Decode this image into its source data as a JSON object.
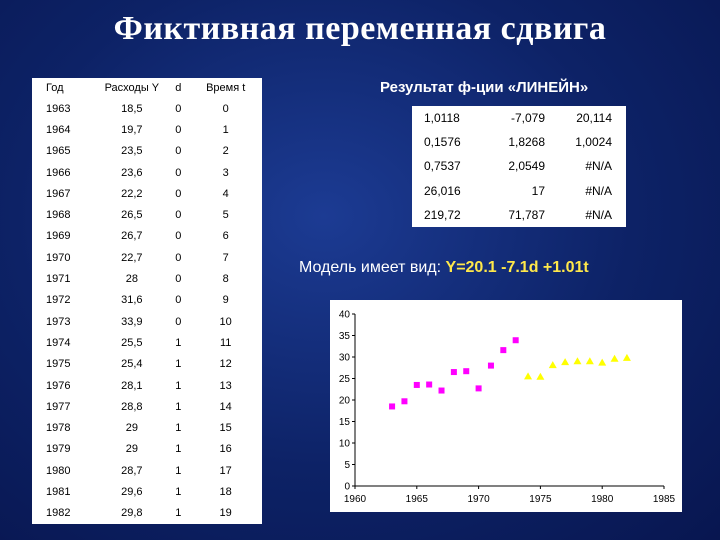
{
  "title": "Фиктивная переменная сдвига",
  "data_table": {
    "headers": [
      "Год",
      "Расходы Y",
      "d",
      "Время t"
    ],
    "rows": [
      [
        "1963",
        "18,5",
        "0",
        "0"
      ],
      [
        "1964",
        "19,7",
        "0",
        "1"
      ],
      [
        "1965",
        "23,5",
        "0",
        "2"
      ],
      [
        "1966",
        "23,6",
        "0",
        "3"
      ],
      [
        "1967",
        "22,2",
        "0",
        "4"
      ],
      [
        "1968",
        "26,5",
        "0",
        "5"
      ],
      [
        "1969",
        "26,7",
        "0",
        "6"
      ],
      [
        "1970",
        "22,7",
        "0",
        "7"
      ],
      [
        "1971",
        "28",
        "0",
        "8"
      ],
      [
        "1972",
        "31,6",
        "0",
        "9"
      ],
      [
        "1973",
        "33,9",
        "0",
        "10"
      ],
      [
        "1974",
        "25,5",
        "1",
        "11"
      ],
      [
        "1975",
        "25,4",
        "1",
        "12"
      ],
      [
        "1976",
        "28,1",
        "1",
        "13"
      ],
      [
        "1977",
        "28,8",
        "1",
        "14"
      ],
      [
        "1978",
        "29",
        "1",
        "15"
      ],
      [
        "1979",
        "29",
        "1",
        "16"
      ],
      [
        "1980",
        "28,7",
        "1",
        "17"
      ],
      [
        "1981",
        "29,6",
        "1",
        "18"
      ],
      [
        "1982",
        "29,8",
        "1",
        "19"
      ]
    ]
  },
  "result": {
    "title": "Результат ф-ции «ЛИНЕЙН»",
    "rows": [
      [
        "1,0118",
        "-7,079",
        "20,114"
      ],
      [
        "0,1576",
        "1,8268",
        "1,0024"
      ],
      [
        "0,7537",
        "2,0549",
        "#N/A"
      ],
      [
        "26,016",
        "17",
        "#N/A"
      ],
      [
        "219,72",
        "71,787",
        "#N/A"
      ]
    ]
  },
  "model": {
    "prefix": "Модель имеет вид: ",
    "formula": "Y=20.1 -7.1d +1.01t"
  },
  "colors": {
    "series_d0": "#ff00ff",
    "series_d1": "#ffff00",
    "background": "#0d2266"
  },
  "chart_data": {
    "type": "scatter",
    "xlim": [
      1960,
      1985
    ],
    "ylim": [
      0,
      40
    ],
    "xticks": [
      1960,
      1965,
      1970,
      1975,
      1980,
      1985
    ],
    "yticks": [
      0,
      5,
      10,
      15,
      20,
      25,
      30,
      35,
      40
    ],
    "series": [
      {
        "marker": "square",
        "color": "#ff00ff",
        "x": [
          1963,
          1964,
          1965,
          1966,
          1967,
          1968,
          1969,
          1970,
          1971,
          1972,
          1973
        ],
        "y": [
          18.5,
          19.7,
          23.5,
          23.6,
          22.2,
          26.5,
          26.7,
          22.7,
          28,
          31.6,
          33.9
        ]
      },
      {
        "marker": "triangle",
        "color": "#ffff00",
        "x": [
          1974,
          1975,
          1976,
          1977,
          1978,
          1979,
          1980,
          1981,
          1982
        ],
        "y": [
          25.5,
          25.4,
          28.1,
          28.8,
          29,
          29,
          28.7,
          29.6,
          29.8
        ]
      }
    ]
  }
}
